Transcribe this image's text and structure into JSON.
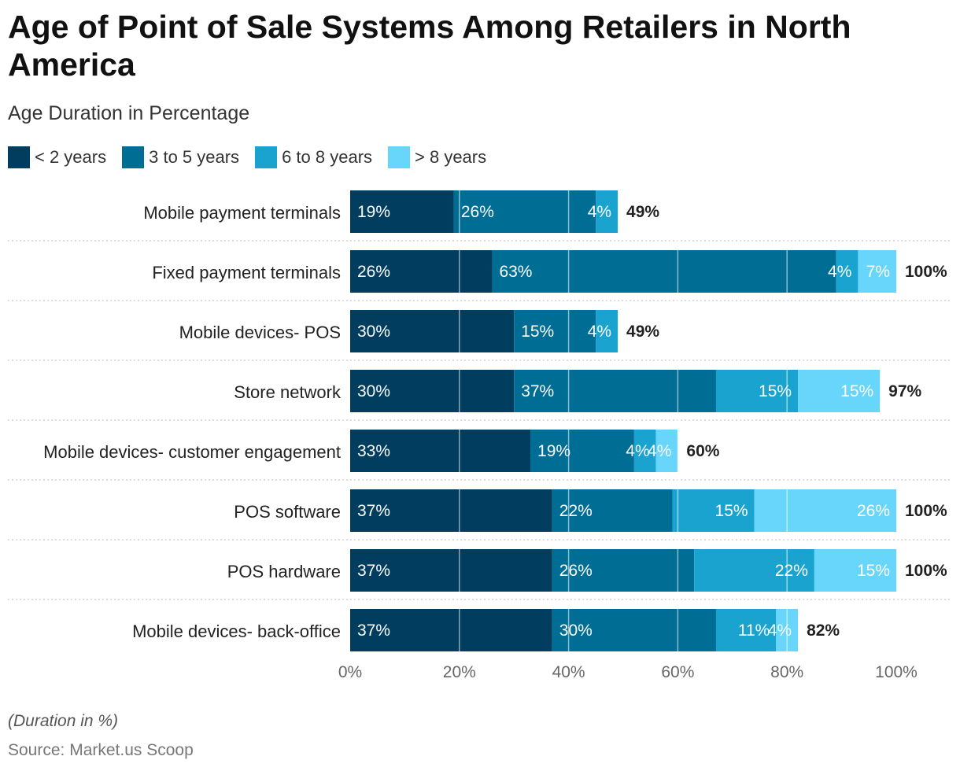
{
  "title": "Age of Point of Sale Systems Among Retailers in North America",
  "subtitle": "Age Duration in Percentage",
  "note": "(Duration in %)",
  "source": "Source: Market.us Scoop",
  "chart_data": {
    "type": "bar",
    "stacked": true,
    "orientation": "horizontal",
    "title": "Age of Point of Sale Systems Among Retailers in North America",
    "subtitle": "Age Duration in Percentage",
    "xlim": [
      0,
      100
    ],
    "xticks": [
      "0%",
      "20%",
      "40%",
      "60%",
      "80%",
      "100%"
    ],
    "legend_position": "top-left",
    "categories": [
      "Mobile payment terminals",
      "Fixed payment terminals",
      "Mobile devices- POS",
      "Store network",
      "Mobile devices- customer engagement",
      "POS software",
      "POS hardware",
      "Mobile devices- back-office"
    ],
    "series": [
      {
        "name": "< 2 years",
        "color": "#003d5f",
        "values": [
          19,
          26,
          30,
          30,
          33,
          37,
          37,
          37
        ]
      },
      {
        "name": "3 to 5 years",
        "color": "#006d95",
        "values": [
          26,
          63,
          15,
          37,
          19,
          22,
          26,
          30
        ]
      },
      {
        "name": "6 to 8 years",
        "color": "#1ba3d0",
        "values": [
          4,
          4,
          4,
          15,
          4,
          15,
          22,
          11
        ]
      },
      {
        "name": "> 8 years",
        "color": "#68d6fb",
        "values": [
          0,
          7,
          0,
          15,
          4,
          26,
          15,
          4
        ]
      }
    ],
    "totals": [
      "49%",
      "100%",
      "49%",
      "97%",
      "60%",
      "100%",
      "100%",
      "82%"
    ]
  }
}
